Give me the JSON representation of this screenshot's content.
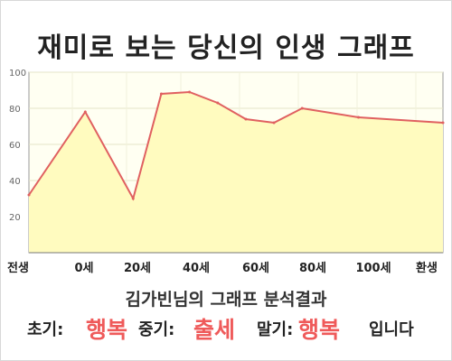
{
  "title": "재미로 보는 당신의 인생 그래프",
  "summary": {
    "headline": "김가빈님의 그래프 분석결과",
    "early_label": "초기:",
    "early_value": "행복",
    "middle_label": "중기:",
    "middle_value": "출세",
    "late_label": "말기:",
    "late_value": "행복",
    "ending": "입니다"
  },
  "colors": {
    "line": "#e06060",
    "fill": "#fffbbf",
    "plot_background": "#fffff2",
    "grid": "#e5e5c8",
    "highlight_text": "#ef5a5a"
  },
  "chart_data": {
    "type": "area",
    "title": "재미로 보는 당신의 인생 그래프",
    "x_tick_labels": [
      "전생",
      "0세",
      "20세",
      "40세",
      "60세",
      "80세",
      "100세",
      "환생"
    ],
    "y_ticks": [
      20,
      40,
      60,
      80,
      100
    ],
    "ylim": [
      0,
      100
    ],
    "grid": true,
    "series": [
      {
        "points": [
          {
            "x": -20,
            "y": 32
          },
          {
            "x": 0,
            "y": 78
          },
          {
            "x": 17,
            "y": 30
          },
          {
            "x": 27,
            "y": 88
          },
          {
            "x": 37,
            "y": 89
          },
          {
            "x": 47,
            "y": 83
          },
          {
            "x": 57,
            "y": 74
          },
          {
            "x": 67,
            "y": 72
          },
          {
            "x": 77,
            "y": 80
          },
          {
            "x": 97,
            "y": 75
          },
          {
            "x": 127,
            "y": 72
          }
        ]
      }
    ]
  }
}
